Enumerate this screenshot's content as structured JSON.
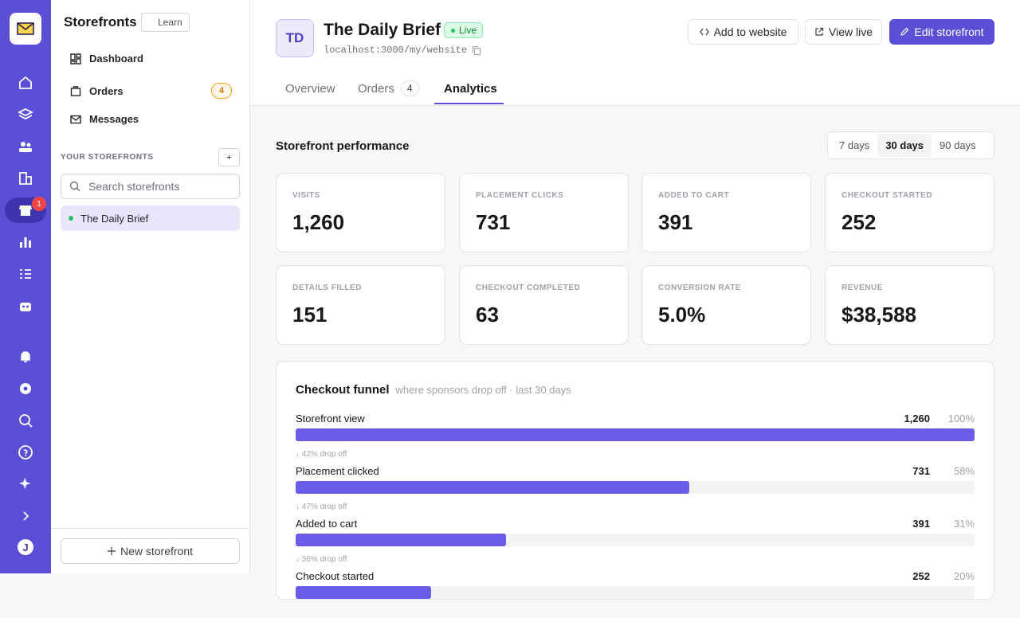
{
  "rail": {
    "badge": "1",
    "avatar": "J"
  },
  "sidebar": {
    "title": "Storefronts",
    "learn": "Learn",
    "nav": [
      {
        "label": "Dashboard"
      },
      {
        "label": "Orders",
        "badge": "4"
      },
      {
        "label": "Messages"
      }
    ],
    "section": "YOUR STOREFRONTS",
    "search_placeholder": "Search storefronts",
    "storefronts": [
      "The Daily Brief"
    ],
    "new_button": "New storefront"
  },
  "header": {
    "initials": "TD",
    "title": "The Daily Brief",
    "status": "Live",
    "url": "localhost:3000/my/website",
    "buttons": [
      "Add to website",
      "View live",
      "Edit storefront"
    ],
    "tabs": [
      {
        "label": "Overview"
      },
      {
        "label": "Orders",
        "count": "4"
      },
      {
        "label": "Analytics"
      }
    ]
  },
  "performance": {
    "title": "Storefront performance",
    "ranges": [
      "7 days",
      "30 days",
      "90 days"
    ],
    "stats": [
      {
        "label": "VISITS",
        "value": "1,260"
      },
      {
        "label": "PLACEMENT CLICKS",
        "value": "731"
      },
      {
        "label": "ADDED TO CART",
        "value": "391"
      },
      {
        "label": "CHECKOUT STARTED",
        "value": "252"
      },
      {
        "label": "DETAILS FILLED",
        "value": "151"
      },
      {
        "label": "CHECKOUT COMPLETED",
        "value": "63"
      },
      {
        "label": "CONVERSION RATE",
        "value": "5.0%"
      },
      {
        "label": "REVENUE",
        "value": "$38,588"
      }
    ]
  },
  "funnel": {
    "title": "Checkout funnel",
    "subtitle": "where sponsors drop off · last 30 days",
    "steps": [
      {
        "label": "Storefront view",
        "count": "1,260",
        "share": {
          "value": 100,
          "label": "100%"
        }
      },
      {
        "label": "Placement clicked",
        "count": "731",
        "share": {
          "value": 58,
          "label": "58%"
        },
        "drop": "↓ 42% drop off"
      },
      {
        "label": "Added to cart",
        "count": "391",
        "share": {
          "value": 31,
          "label": "31%"
        },
        "drop": "↓ 47% drop off"
      },
      {
        "label": "Checkout started",
        "count": "252",
        "share": {
          "value": 20,
          "label": "20%"
        },
        "drop": "↓ 36% drop off"
      }
    ]
  }
}
